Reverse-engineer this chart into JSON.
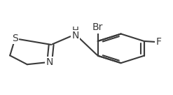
{
  "background_color": "#ffffff",
  "line_color": "#3a3a3a",
  "line_width": 1.5,
  "S_label": "S",
  "N_label": "N",
  "NH_label": "H\nN",
  "Br_label": "Br",
  "F_label": "F",
  "fontsize": 9.5
}
